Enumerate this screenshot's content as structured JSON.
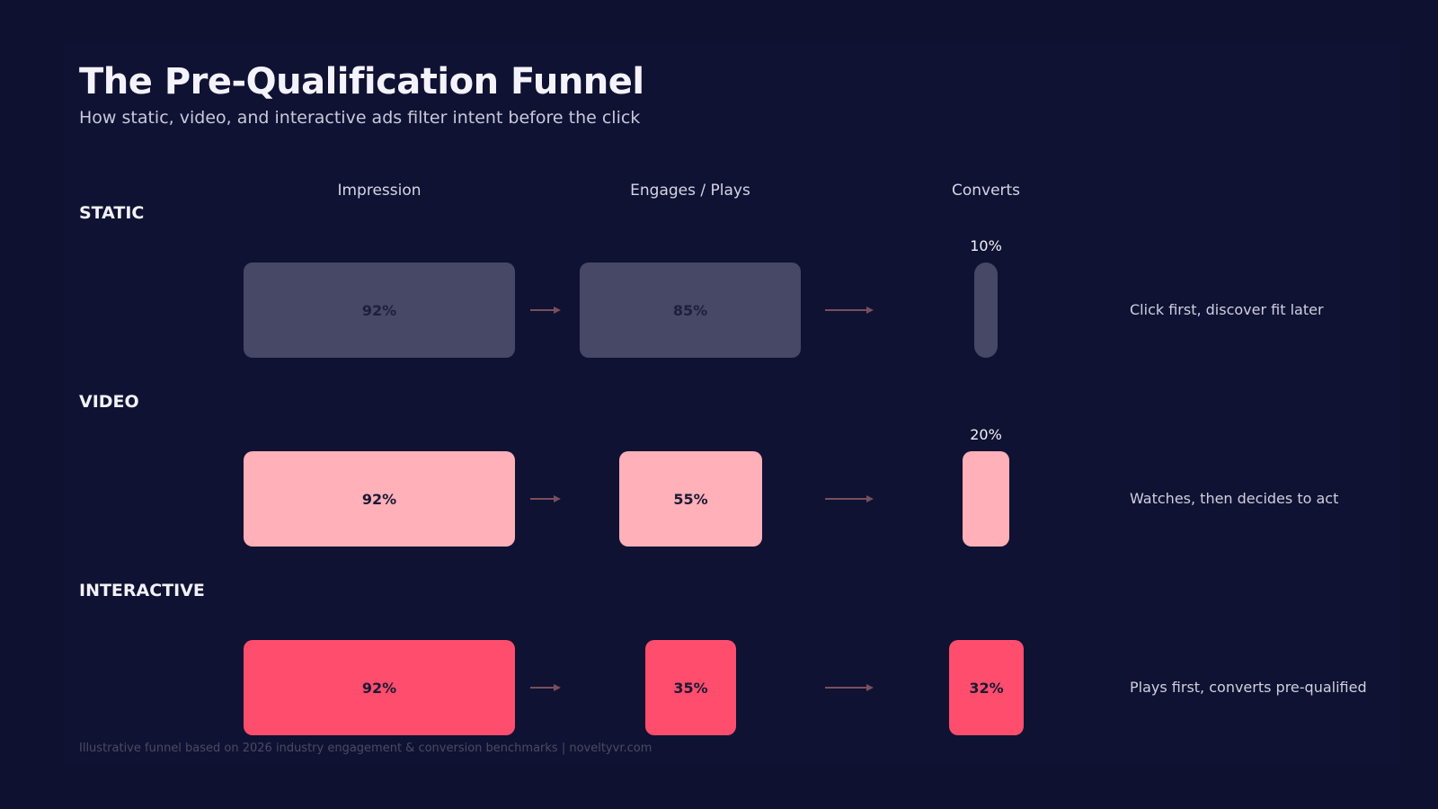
{
  "title": "The Pre-Qualification Funnel",
  "subtitle": "How static, video, and interactive ads filter intent before the click",
  "footer": "Illustrative funnel based on 2026 industry engagement & conversion benchmarks  |  noveltyvr.com",
  "colors": {
    "background": "#0e1130",
    "static": "#474766",
    "video": "#ffb0b8",
    "interactive": "#ff4d6d",
    "arrow": "#7a4e5c"
  },
  "chart_data": {
    "type": "bar",
    "categories": [
      "Impression",
      "Engages / Plays",
      "Converts"
    ],
    "series": [
      {
        "name": "STATIC",
        "values": [
          92,
          85,
          10
        ],
        "labels": [
          "92%",
          "85%",
          "10%"
        ],
        "color": "#474766",
        "text_color": "#1e1f3d",
        "outcome": "Click first, discover fit later"
      },
      {
        "name": "VIDEO",
        "values": [
          92,
          55,
          20
        ],
        "labels": [
          "92%",
          "55%",
          "20%"
        ],
        "color": "#ffb0b8",
        "text_color": "#1a1a34",
        "outcome": "Watches, then decides to act"
      },
      {
        "name": "INTERACTIVE",
        "values": [
          92,
          35,
          32
        ],
        "labels": [
          "92%",
          "35%",
          "32%"
        ],
        "color": "#ff4d6d",
        "text_color": "#1a1a34",
        "outcome": "Plays first, converts pre-qualified"
      }
    ],
    "unit": "%"
  }
}
